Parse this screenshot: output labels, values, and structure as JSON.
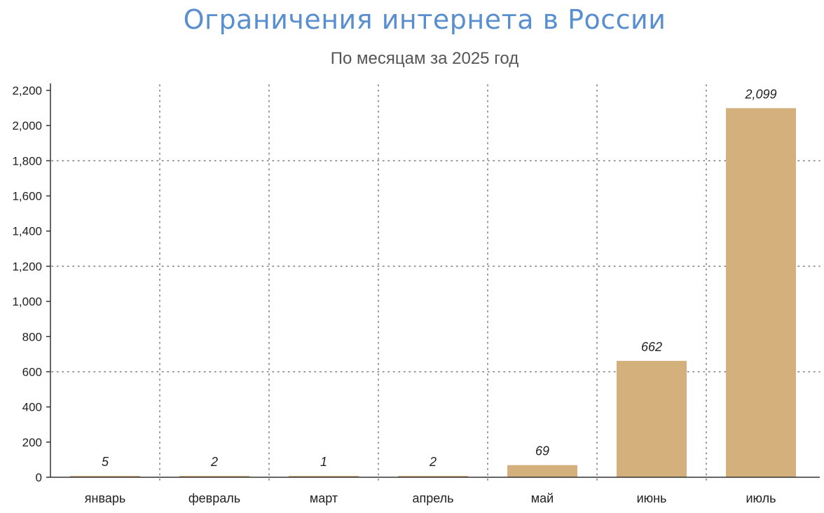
{
  "chart_data": {
    "type": "bar",
    "title": "Ограничения интернета в России",
    "subtitle": "По месяцам за 2025 год",
    "categories": [
      "январь",
      "февраль",
      "март",
      "апрель",
      "май",
      "июнь",
      "июль"
    ],
    "values": [
      5,
      2,
      1,
      2,
      69,
      662,
      2099
    ],
    "value_labels": [
      "5",
      "2",
      "1",
      "2",
      "69",
      "662",
      "2,099"
    ],
    "ylim": [
      0,
      2200
    ],
    "yticks": [
      0,
      200,
      400,
      600,
      800,
      1000,
      1200,
      1400,
      1600,
      1800,
      2000,
      2200
    ],
    "ytick_labels": [
      "0",
      "200",
      "400",
      "600",
      "800",
      "1,000",
      "1,200",
      "1,400",
      "1,600",
      "1,800",
      "2,000",
      "2,200"
    ],
    "grid": "dotted",
    "bar_color": "#d4b07c",
    "grid_color": "#777777",
    "title_color": "#5a8fcf"
  }
}
